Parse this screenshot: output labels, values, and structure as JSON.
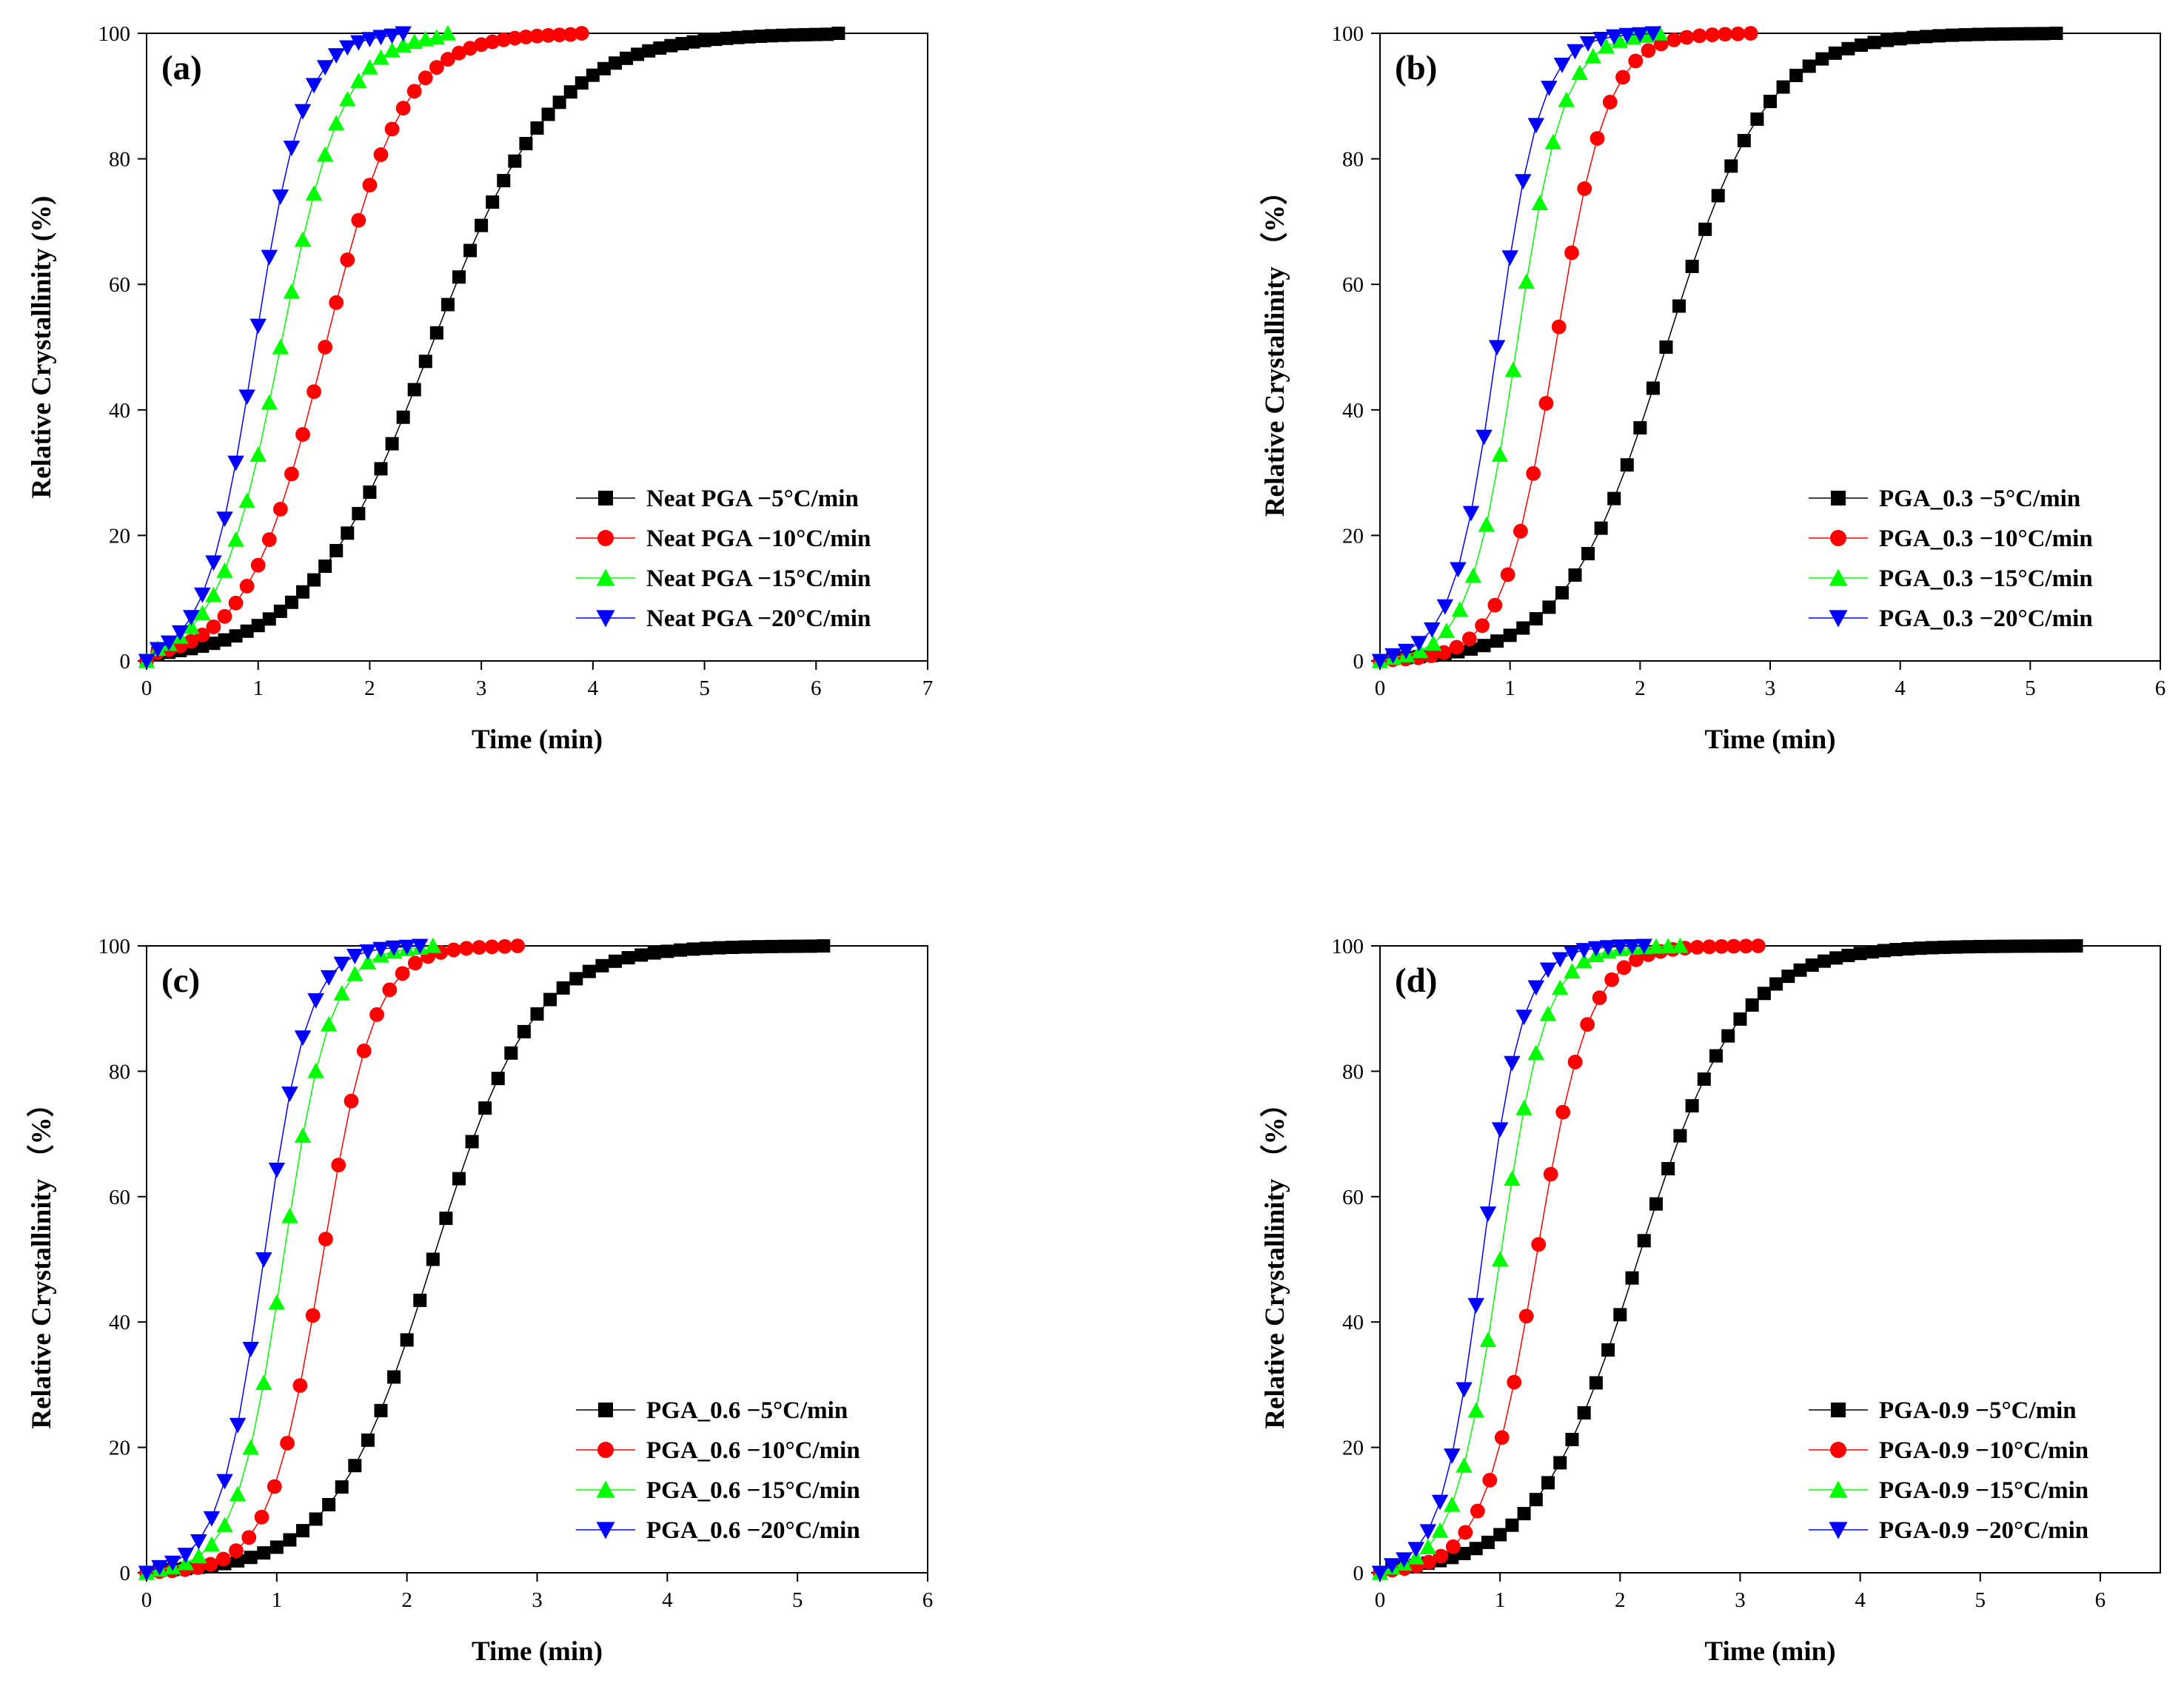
{
  "figure": {
    "panel_count": 4
  },
  "chart_data": [
    {
      "type": "line",
      "tag": "(a)",
      "xlabel": "Time (min)",
      "ylabel": "Relative Crystallinity (%)",
      "xlim": [
        0,
        7
      ],
      "ylim": [
        0,
        100
      ],
      "xticks": [
        0,
        1,
        2,
        3,
        4,
        5,
        6,
        7
      ],
      "yticks": [
        0,
        20,
        40,
        60,
        80,
        100
      ],
      "legend_position": "bottom-right",
      "series": [
        {
          "name": "Neat PGA  −5°C/min",
          "color": "#000000",
          "marker": "square",
          "t_half": 2.55,
          "width": 0.55,
          "t_end": 6.2
        },
        {
          "name": "Neat PGA  −10°C/min",
          "color": "#ff0000",
          "marker": "circle",
          "t_half": 1.6,
          "width": 0.35,
          "t_end": 3.9
        },
        {
          "name": "Neat PGA  −15°C/min",
          "color": "#00ff00",
          "marker": "triangle-up",
          "t_half": 1.2,
          "width": 0.28,
          "t_end": 2.7
        },
        {
          "name": "Neat PGA  −20°C/min",
          "color": "#0000ff",
          "marker": "triangle-down",
          "t_half": 0.97,
          "width": 0.22,
          "t_end": 2.3
        }
      ]
    },
    {
      "type": "line",
      "tag": "(b)",
      "xlabel": "Time (min)",
      "ylabel": "Relative Crystallinity （%）",
      "xlim": [
        0,
        6
      ],
      "ylim": [
        0,
        100
      ],
      "xticks": [
        0,
        1,
        2,
        3,
        4,
        5,
        6
      ],
      "yticks": [
        0,
        20,
        40,
        60,
        80,
        100
      ],
      "legend_position": "bottom-right",
      "series": [
        {
          "name": "PGA_0.3  −5°C/min",
          "color": "#000000",
          "marker": "square",
          "t_half": 2.2,
          "width": 0.38,
          "t_end": 5.2
        },
        {
          "name": "PGA_0.3  −10°C/min",
          "color": "#ff0000",
          "marker": "circle",
          "t_half": 1.35,
          "width": 0.2,
          "t_end": 2.85
        },
        {
          "name": "PGA_0.3  −15°C/min",
          "color": "#00ff00",
          "marker": "triangle-up",
          "t_half": 1.05,
          "width": 0.18,
          "t_end": 2.15
        },
        {
          "name": "PGA_0.3  −20°C/min",
          "color": "#0000ff",
          "marker": "triangle-down",
          "t_half": 0.9,
          "width": 0.17,
          "t_end": 2.1
        }
      ]
    },
    {
      "type": "line",
      "tag": "(c)",
      "xlabel": "Time (min)",
      "ylabel": "Relative Crystallinity （%）",
      "xlim": [
        0,
        6
      ],
      "ylim": [
        0,
        100
      ],
      "xticks": [
        0,
        1,
        2,
        3,
        4,
        5,
        6
      ],
      "yticks": [
        0,
        20,
        40,
        60,
        80,
        100
      ],
      "legend_position": "bottom-right",
      "series": [
        {
          "name": "PGA_0.6  −5°C/min",
          "color": "#000000",
          "marker": "square",
          "t_half": 2.2,
          "width": 0.38,
          "t_end": 5.2
        },
        {
          "name": "PGA_0.6  −10°C/min",
          "color": "#ff0000",
          "marker": "circle",
          "t_half": 1.35,
          "width": 0.2,
          "t_end": 2.85
        },
        {
          "name": "PGA_0.6  −15°C/min",
          "color": "#00ff00",
          "marker": "triangle-up",
          "t_half": 1.05,
          "width": 0.18,
          "t_end": 2.2
        },
        {
          "name": "PGA_0.6  −20°C/min",
          "color": "#0000ff",
          "marker": "triangle-down",
          "t_half": 0.9,
          "width": 0.17,
          "t_end": 2.1
        }
      ]
    },
    {
      "type": "line",
      "tag": "(d)",
      "xlabel": "Time (min)",
      "ylabel": "Relative Crystallinity （%）",
      "xlim": [
        0,
        6.5
      ],
      "ylim": [
        0,
        100
      ],
      "xticks": [
        0,
        1,
        2,
        3,
        4,
        5,
        6
      ],
      "yticks": [
        0,
        20,
        40,
        60,
        80,
        100
      ],
      "legend_position": "bottom-right",
      "series": [
        {
          "name": "PGA-0.9  −5°C/min",
          "color": "#000000",
          "marker": "square",
          "t_half": 2.15,
          "width": 0.42,
          "t_end": 5.8
        },
        {
          "name": "PGA-0.9  −10°C/min",
          "color": "#ff0000",
          "marker": "circle",
          "t_half": 1.3,
          "width": 0.22,
          "t_end": 3.15
        },
        {
          "name": "PGA-0.9  −15°C/min",
          "color": "#00ff00",
          "marker": "triangle-up",
          "t_half": 1.0,
          "width": 0.19,
          "t_end": 2.5
        },
        {
          "name": "PGA-0.9  −20°C/min",
          "color": "#0000ff",
          "marker": "triangle-down",
          "t_half": 0.85,
          "width": 0.17,
          "t_end": 2.2
        }
      ]
    }
  ]
}
